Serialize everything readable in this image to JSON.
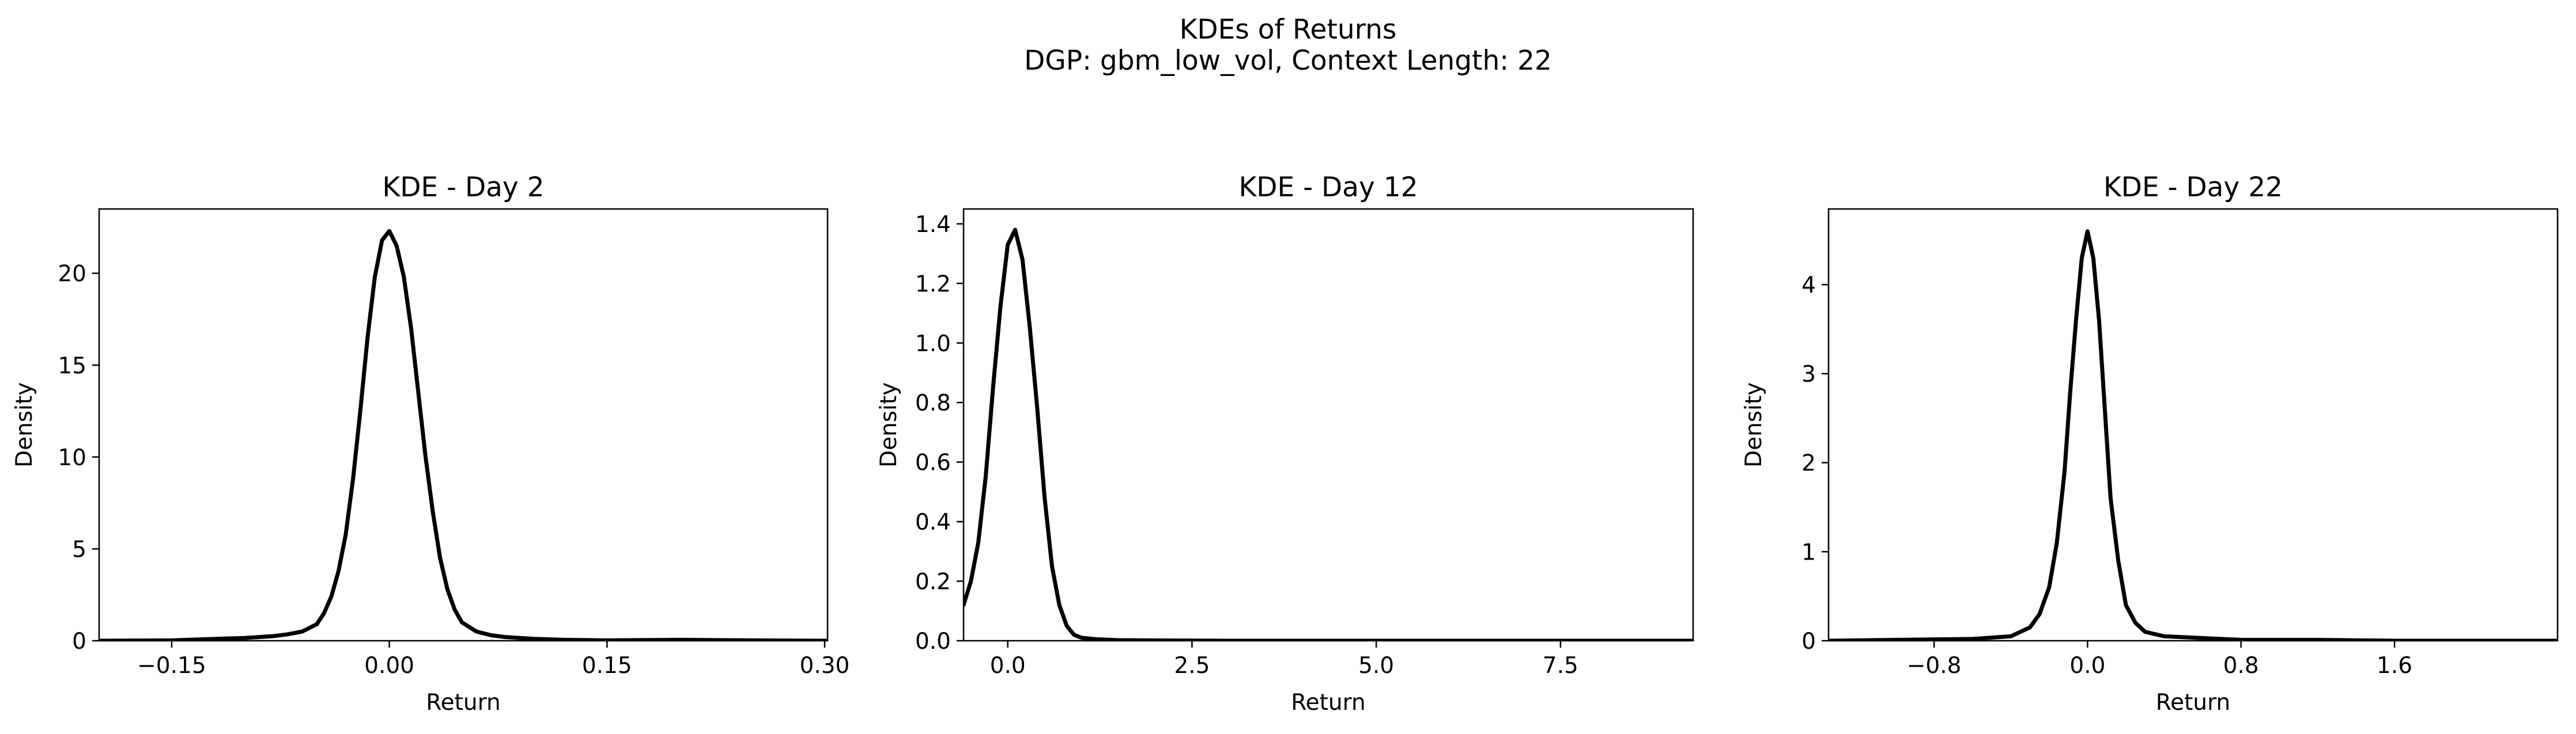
{
  "figure": {
    "title": "KDEs of Returns",
    "subtitle": "DGP: gbm_low_vol, Context Length: 22"
  },
  "chart_data": [
    {
      "type": "line",
      "title": "KDE - Day 2",
      "xlabel": "Return",
      "ylabel": "Density",
      "xlim": [
        -0.2,
        0.302
      ],
      "ylim": [
        0,
        23.5
      ],
      "xticks": [
        -0.15,
        0.0,
        0.15,
        0.3
      ],
      "xtick_labels": [
        "−0.15",
        "0.00",
        "0.15",
        "0.30"
      ],
      "yticks": [
        0,
        5,
        10,
        15,
        20
      ],
      "ytick_labels": [
        "0",
        "5",
        "10",
        "15",
        "20"
      ],
      "grid": false,
      "series": [
        {
          "color": "#000000",
          "x": [
            -0.2,
            -0.15,
            -0.12,
            -0.1,
            -0.08,
            -0.07,
            -0.06,
            -0.05,
            -0.045,
            -0.04,
            -0.035,
            -0.03,
            -0.025,
            -0.02,
            -0.015,
            -0.01,
            -0.005,
            0.0,
            0.005,
            0.01,
            0.015,
            0.02,
            0.025,
            0.03,
            0.035,
            0.04,
            0.045,
            0.05,
            0.06,
            0.07,
            0.08,
            0.1,
            0.12,
            0.15,
            0.2,
            0.25,
            0.302
          ],
          "y": [
            0,
            0.02,
            0.1,
            0.15,
            0.25,
            0.35,
            0.5,
            0.9,
            1.5,
            2.4,
            3.8,
            5.8,
            8.8,
            12.5,
            16.5,
            19.8,
            21.8,
            22.3,
            21.5,
            19.8,
            17.0,
            13.5,
            10.0,
            7.0,
            4.5,
            2.8,
            1.7,
            1.0,
            0.5,
            0.3,
            0.2,
            0.1,
            0.05,
            0.02,
            0.05,
            0.02,
            0
          ]
        }
      ]
    },
    {
      "type": "line",
      "title": "KDE - Day 12",
      "xlabel": "Return",
      "ylabel": "Density",
      "xlim": [
        -0.6,
        9.3
      ],
      "ylim": [
        0,
        1.45
      ],
      "xticks": [
        0.0,
        2.5,
        5.0,
        7.5
      ],
      "xtick_labels": [
        "0.0",
        "2.5",
        "5.0",
        "7.5"
      ],
      "yticks": [
        0,
        0.2,
        0.4,
        0.6,
        0.8,
        1.0,
        1.2,
        1.4
      ],
      "ytick_labels": [
        "0.0",
        "0.2",
        "0.4",
        "0.6",
        "0.8",
        "1.0",
        "1.2",
        "1.4"
      ],
      "grid": false,
      "series": [
        {
          "color": "#000000",
          "x": [
            -0.6,
            -0.5,
            -0.4,
            -0.3,
            -0.2,
            -0.1,
            0.0,
            0.1,
            0.2,
            0.3,
            0.4,
            0.5,
            0.6,
            0.7,
            0.8,
            0.9,
            1.0,
            1.2,
            1.5,
            2.0,
            3.0,
            5.0,
            7.0,
            9.3
          ],
          "y": [
            0.12,
            0.2,
            0.33,
            0.55,
            0.85,
            1.12,
            1.33,
            1.38,
            1.28,
            1.05,
            0.78,
            0.48,
            0.25,
            0.12,
            0.05,
            0.02,
            0.01,
            0.005,
            0.002,
            0.001,
            0,
            0,
            0,
            0
          ]
        }
      ]
    },
    {
      "type": "line",
      "title": "KDE - Day 22",
      "xlabel": "Return",
      "ylabel": "Density",
      "xlim": [
        -1.35,
        2.45
      ],
      "ylim": [
        0,
        4.85
      ],
      "xticks": [
        -0.8,
        0.0,
        0.8,
        1.6
      ],
      "xtick_labels": [
        "−0.8",
        "0.0",
        "0.8",
        "1.6"
      ],
      "yticks": [
        0,
        1,
        2,
        3,
        4
      ],
      "ytick_labels": [
        "0",
        "1",
        "2",
        "3",
        "4"
      ],
      "grid": false,
      "series": [
        {
          "color": "#000000",
          "x": [
            -1.35,
            -1.0,
            -0.6,
            -0.4,
            -0.3,
            -0.25,
            -0.2,
            -0.16,
            -0.12,
            -0.09,
            -0.06,
            -0.03,
            0.0,
            0.03,
            0.06,
            0.09,
            0.12,
            0.16,
            0.2,
            0.25,
            0.3,
            0.4,
            0.6,
            0.8,
            1.2,
            1.6,
            2.45
          ],
          "y": [
            0,
            0.01,
            0.02,
            0.05,
            0.15,
            0.3,
            0.6,
            1.1,
            1.9,
            2.8,
            3.6,
            4.3,
            4.6,
            4.3,
            3.6,
            2.6,
            1.6,
            0.9,
            0.4,
            0.2,
            0.1,
            0.05,
            0.03,
            0.01,
            0.01,
            0,
            0
          ]
        }
      ]
    }
  ]
}
